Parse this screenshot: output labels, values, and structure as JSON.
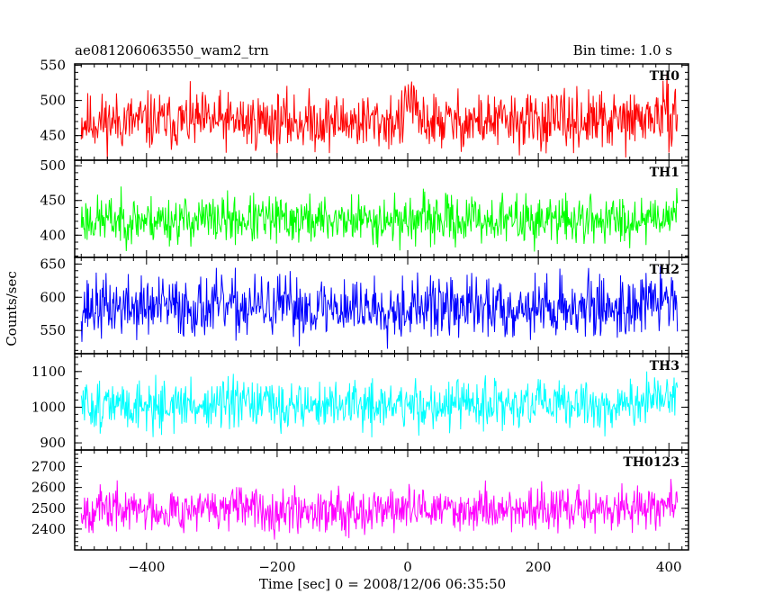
{
  "header": {
    "title": "ae081206063550_wam2_trn",
    "bin_time": "Bin time: 1.0 s"
  },
  "chart_data": {
    "type": "line",
    "xlabel": "Time [sec] 0 = 2008/12/06 06:35:50",
    "ylabel": "Counts/sec",
    "xlim": [
      -510,
      430
    ],
    "xticks": [
      -400,
      -200,
      0,
      200,
      400
    ],
    "x_start": -500,
    "x_end": 413,
    "bin": 1.0,
    "panels": [
      {
        "name": "TH0",
        "color": "#ff0000",
        "ylim": [
          415,
          552
        ],
        "yticks": [
          450,
          500,
          550
        ],
        "mean": 470,
        "amp": 35,
        "noise_seed": 11
      },
      {
        "name": "TH1",
        "color": "#00ff00",
        "ylim": [
          368,
          508
        ],
        "yticks": [
          400,
          450,
          500
        ],
        "mean": 422,
        "amp": 30,
        "noise_seed": 23
      },
      {
        "name": "TH2",
        "color": "#0000ff",
        "ylim": [
          515,
          660
        ],
        "yticks": [
          550,
          600,
          650
        ],
        "mean": 585,
        "amp": 40,
        "noise_seed": 37
      },
      {
        "name": "TH3",
        "color": "#00ffff",
        "ylim": [
          880,
          1150
        ],
        "yticks": [
          900,
          1000,
          1100
        ],
        "mean": 1005,
        "amp": 60,
        "noise_seed": 51
      },
      {
        "name": "TH0123",
        "color": "#ff00ff",
        "ylim": [
          2300,
          2780
        ],
        "yticks": [
          2400,
          2500,
          2600,
          2700
        ],
        "mean": 2495,
        "amp": 90,
        "noise_seed": 67
      }
    ]
  }
}
